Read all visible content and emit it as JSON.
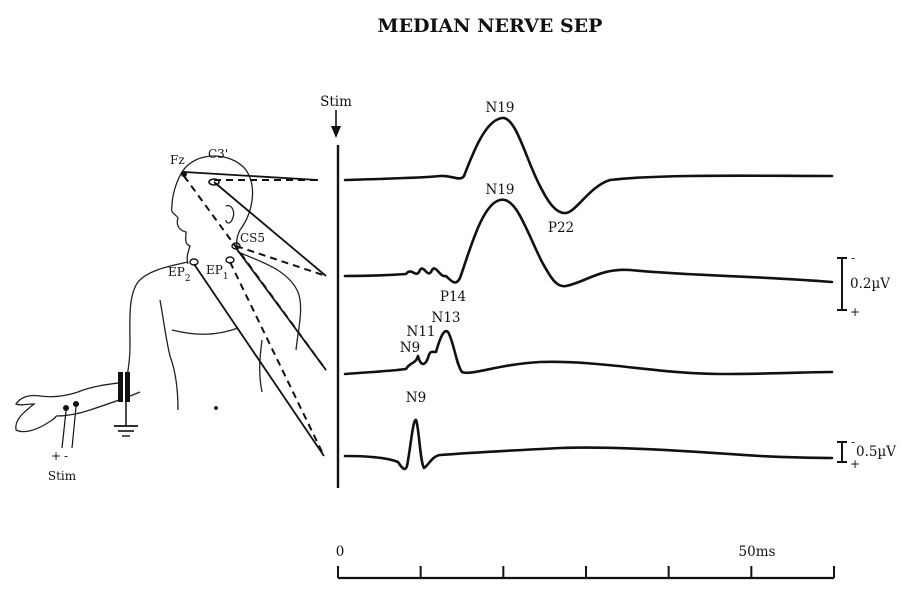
{
  "title": "MEDIAN NERVE SEP",
  "stim_marker": "Stim",
  "electrodes": {
    "fz": "Fz",
    "c3": "C3'",
    "cs5": "CS5",
    "ep2_main": "EP",
    "ep2_sub": "2",
    "ep1_main": "EP",
    "ep1_sub": "1"
  },
  "stim_site": {
    "label": "Stim",
    "minus": "-",
    "plus": "+"
  },
  "waveforms": [
    {
      "channel": 1,
      "peaks": [
        "N19",
        "P22"
      ]
    },
    {
      "channel": 2,
      "peaks": [
        "N19",
        "P14"
      ]
    },
    {
      "channel": 3,
      "peaks": [
        "N9",
        "N11",
        "N13"
      ]
    },
    {
      "channel": 4,
      "peaks": [
        "N9"
      ]
    }
  ],
  "peak_labels": {
    "ch1_n19": "N19",
    "ch1_p22": "P22",
    "ch2_n19": "N19",
    "ch2_p14": "P14",
    "ch3_n9": "N9",
    "ch3_n11": "N11",
    "ch3_n13": "N13",
    "ch4_n9": "N9"
  },
  "calibration": {
    "upper": {
      "value": "0.2µV",
      "minus": "-",
      "plus": "+"
    },
    "lower": {
      "value": "0.5µV",
      "minus": "-",
      "plus": "+"
    }
  },
  "time_axis": {
    "start_label": "0",
    "end_label": "50ms",
    "range_ms": [
      0,
      60
    ],
    "tick_ms": [
      0,
      10,
      20,
      30,
      40,
      50,
      60
    ]
  }
}
